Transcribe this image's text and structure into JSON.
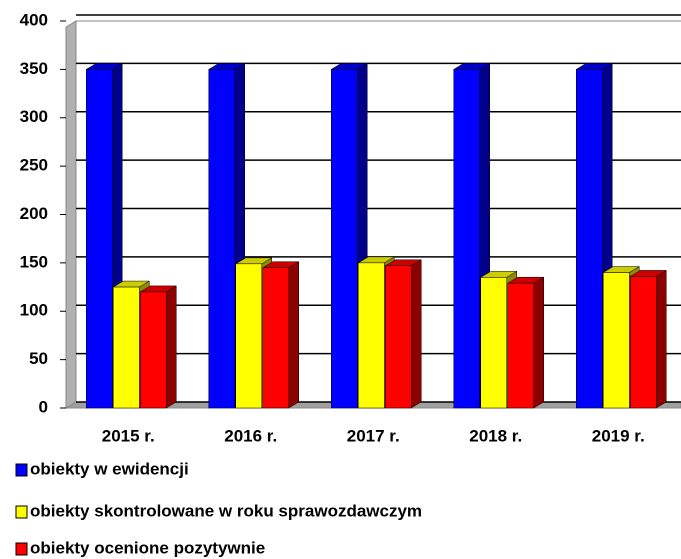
{
  "chart_data": {
    "type": "bar3d",
    "categories": [
      "2015 r.",
      "2016 r.",
      "2017 r.",
      "2018 r.",
      "2019 r."
    ],
    "series": [
      {
        "name": "obiekty w ewidencji",
        "color": "#0000ff",
        "values": [
          350,
          350,
          350,
          350,
          350
        ]
      },
      {
        "name": "obiekty skontrolowane w roku sprawozdawczym",
        "color": "#ffff00",
        "values": [
          125,
          149,
          150,
          135,
          140
        ]
      },
      {
        "name": "obiekty ocenione pozytywnie",
        "color": "#ff0000",
        "values": [
          120,
          145,
          147,
          129,
          136
        ]
      }
    ],
    "ylim": [
      0,
      400
    ],
    "yticks": [
      0,
      50,
      100,
      150,
      200,
      250,
      300,
      350,
      400
    ],
    "grid": true,
    "legend": "bottom"
  }
}
